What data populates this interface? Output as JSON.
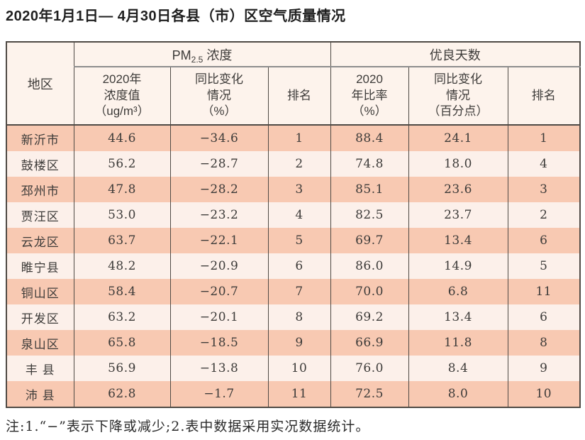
{
  "page": {
    "title": "2020年1月1日— 4月30日各县（市）区空气质量情况",
    "note": "注:1.“−”表示下降或减少;2.表中数据采用实况数据统计。"
  },
  "table": {
    "group_headers": {
      "region": "地区",
      "pm25": {
        "prefix": "PM",
        "sub": "2.5",
        "suffix": " 浓度"
      },
      "good_days": "优良天数"
    },
    "sub_headers": {
      "pm_value": [
        "2020年",
        "浓度值",
        "（ug/m³）"
      ],
      "pm_change": [
        "同比变化",
        "情况",
        "（%）"
      ],
      "pm_rank": "排名",
      "gd_rate": [
        "2020",
        "年比率",
        "（%）"
      ],
      "gd_change": [
        "同比变化",
        "情况",
        "（百分点）"
      ],
      "gd_rank": "排名"
    },
    "rows": [
      {
        "region": "新沂市",
        "pm_value": "44.6",
        "pm_change": "−34.6",
        "pm_rank": "1",
        "gd_rate": "88.4",
        "gd_change": "24.1",
        "gd_rank": "1"
      },
      {
        "region": "鼓楼区",
        "pm_value": "56.2",
        "pm_change": "−28.7",
        "pm_rank": "2",
        "gd_rate": "74.8",
        "gd_change": "18.0",
        "gd_rank": "4"
      },
      {
        "region": "邳州市",
        "pm_value": "47.8",
        "pm_change": "−28.2",
        "pm_rank": "3",
        "gd_rate": "85.1",
        "gd_change": "23.6",
        "gd_rank": "3"
      },
      {
        "region": "贾汪区",
        "pm_value": "53.0",
        "pm_change": "−23.2",
        "pm_rank": "4",
        "gd_rate": "82.5",
        "gd_change": "23.7",
        "gd_rank": "2"
      },
      {
        "region": "云龙区",
        "pm_value": "63.7",
        "pm_change": "−22.1",
        "pm_rank": "5",
        "gd_rate": "69.7",
        "gd_change": "13.4",
        "gd_rank": "6"
      },
      {
        "region": "睢宁县",
        "pm_value": "48.2",
        "pm_change": "−20.9",
        "pm_rank": "6",
        "gd_rate": "86.0",
        "gd_change": "14.9",
        "gd_rank": "5"
      },
      {
        "region": "铜山区",
        "pm_value": "58.4",
        "pm_change": "−20.7",
        "pm_rank": "7",
        "gd_rate": "70.0",
        "gd_change": "6.8",
        "gd_rank": "11"
      },
      {
        "region": "开发区",
        "pm_value": "63.2",
        "pm_change": "−20.1",
        "pm_rank": "8",
        "gd_rate": "69.2",
        "gd_change": "13.4",
        "gd_rank": "6"
      },
      {
        "region": "泉山区",
        "pm_value": "65.8",
        "pm_change": "−18.5",
        "pm_rank": "9",
        "gd_rate": "66.9",
        "gd_change": "11.8",
        "gd_rank": "8"
      },
      {
        "region": "丰 县",
        "pm_value": "56.9",
        "pm_change": "−13.8",
        "pm_rank": "10",
        "gd_rate": "76.0",
        "gd_change": "8.4",
        "gd_rank": "9"
      },
      {
        "region": "沛 县",
        "pm_value": "62.8",
        "pm_change": "−1.7",
        "pm_rank": "11",
        "gd_rate": "72.5",
        "gd_change": "8.0",
        "gd_rank": "10"
      }
    ]
  },
  "colors": {
    "row_odd_bg": "#f8c9b2",
    "row_even_bg": "#fcf0ea",
    "header_bg": "#fdf3ec",
    "border_dark": "#4f4a45",
    "border_gray": "#8d8d8d"
  }
}
